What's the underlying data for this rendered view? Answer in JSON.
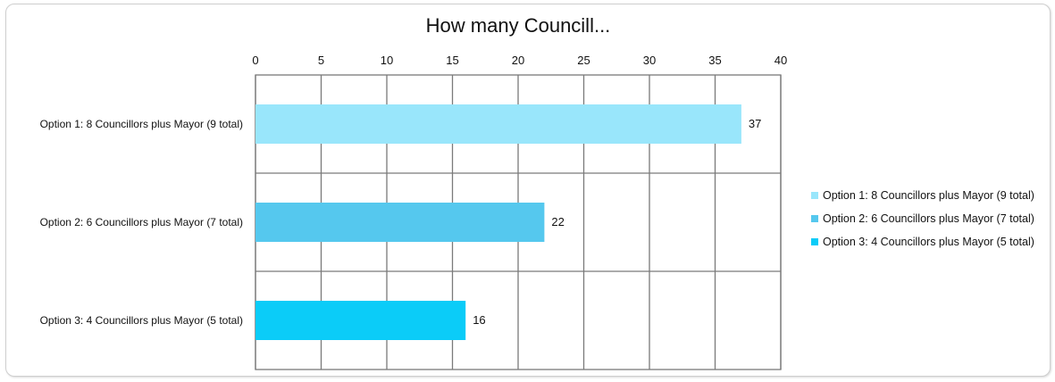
{
  "chart_data": {
    "type": "bar",
    "orientation": "horizontal",
    "title": "How many Councill...",
    "categories": [
      "Option 1: 8 Councillors plus Mayor (9 total)",
      "Option 2: 6 Councillors plus Mayor (7 total)",
      "Option 3: 4 Councillors plus Mayor (5 total)"
    ],
    "values": [
      37,
      22,
      16
    ],
    "colors": [
      "#99e6fb",
      "#55c8ee",
      "#0bccf8"
    ],
    "xlim": [
      0,
      40
    ],
    "xticks": [
      "0",
      "5",
      "10",
      "15",
      "20",
      "25",
      "30",
      "35",
      "40"
    ],
    "grid": true,
    "legend": {
      "position": "right",
      "entries": [
        "Option 1: 8 Councillors plus Mayor (9 total)",
        "Option 2: 6 Councillors plus Mayor (7 total)",
        "Option 3: 4 Councillors plus Mayor (5 total)"
      ]
    }
  }
}
